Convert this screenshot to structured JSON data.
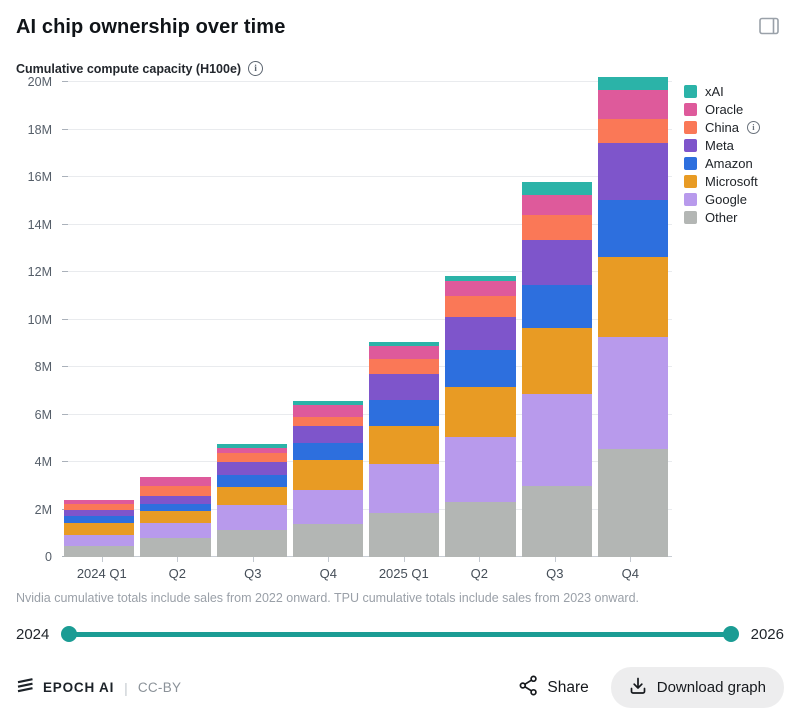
{
  "header": {
    "title": "AI chip ownership over time"
  },
  "subtitle": {
    "label": "Cumulative compute capacity (H100e)",
    "info_icon": "info-icon"
  },
  "chart_data": {
    "type": "bar",
    "subtype": "stacked",
    "title": "AI chip ownership over time",
    "ylabel": "Cumulative compute capacity (H100e)",
    "xlabel": "",
    "unit": "millions of H100e",
    "ylim_m": [
      0,
      20
    ],
    "ytick_step_m": 2,
    "yticks": [
      "0",
      "2M",
      "4M",
      "6M",
      "8M",
      "10M",
      "12M",
      "14M",
      "16M",
      "18M",
      "20M"
    ],
    "grid": true,
    "legend_position": "right",
    "categories": [
      "2024 Q1",
      "Q2",
      "Q3",
      "Q4",
      "2025 Q1",
      "Q2",
      "Q3",
      "Q4"
    ],
    "series": [
      {
        "name": "xAI",
        "color": "#2BB3A8",
        "info": false,
        "values_m": [
          0,
          0,
          0.15,
          0.17,
          0.17,
          0.21,
          0.55,
          0.55
        ]
      },
      {
        "name": "Oracle",
        "color": "#DE5A9B",
        "info": false,
        "values_m": [
          0.15,
          0.38,
          0.2,
          0.5,
          0.55,
          0.6,
          0.85,
          1.2
        ]
      },
      {
        "name": "China",
        "color": "#FA7857",
        "info": true,
        "values_m": [
          0.25,
          0.4,
          0.4,
          0.4,
          0.65,
          0.9,
          1.05,
          1.0
        ]
      },
      {
        "name": "Meta",
        "color": "#7E55CB",
        "info": false,
        "values_m": [
          0.27,
          0.35,
          0.55,
          0.7,
          1.1,
          1.4,
          1.9,
          2.4
        ]
      },
      {
        "name": "Amazon",
        "color": "#2D6FDE",
        "info": false,
        "values_m": [
          0.28,
          0.28,
          0.5,
          0.7,
          1.1,
          1.55,
          1.8,
          2.4
        ]
      },
      {
        "name": "Microsoft",
        "color": "#E89B24",
        "info": false,
        "values_m": [
          0.52,
          0.5,
          0.75,
          1.3,
          1.6,
          2.1,
          2.8,
          3.4
        ]
      },
      {
        "name": "Google",
        "color": "#B89AEC",
        "info": false,
        "values_m": [
          0.48,
          0.65,
          1.05,
          1.4,
          2.05,
          2.75,
          3.85,
          4.7
        ]
      },
      {
        "name": "Other",
        "color": "#B3B6B4",
        "info": false,
        "values_m": [
          0.45,
          0.8,
          1.15,
          1.4,
          1.85,
          2.3,
          3.0,
          4.55
        ]
      }
    ],
    "totals_m": [
      2.4,
      3.36,
      4.75,
      6.57,
      9.07,
      11.81,
      15.8,
      20.2
    ],
    "stack_order": "bottom-to-top is reverse of legend order (Other at bottom, xAI on top)"
  },
  "note": "Nvidia cumulative totals include sales from 2022 onward. TPU cumulative totals include sales from 2023 onward.",
  "slider": {
    "min_label": "2024",
    "max_label": "2026",
    "accent_color": "#1B9C94"
  },
  "footer": {
    "brand": "EPOCH AI",
    "license": "CC-BY",
    "share_label": "Share",
    "download_label": "Download graph"
  }
}
